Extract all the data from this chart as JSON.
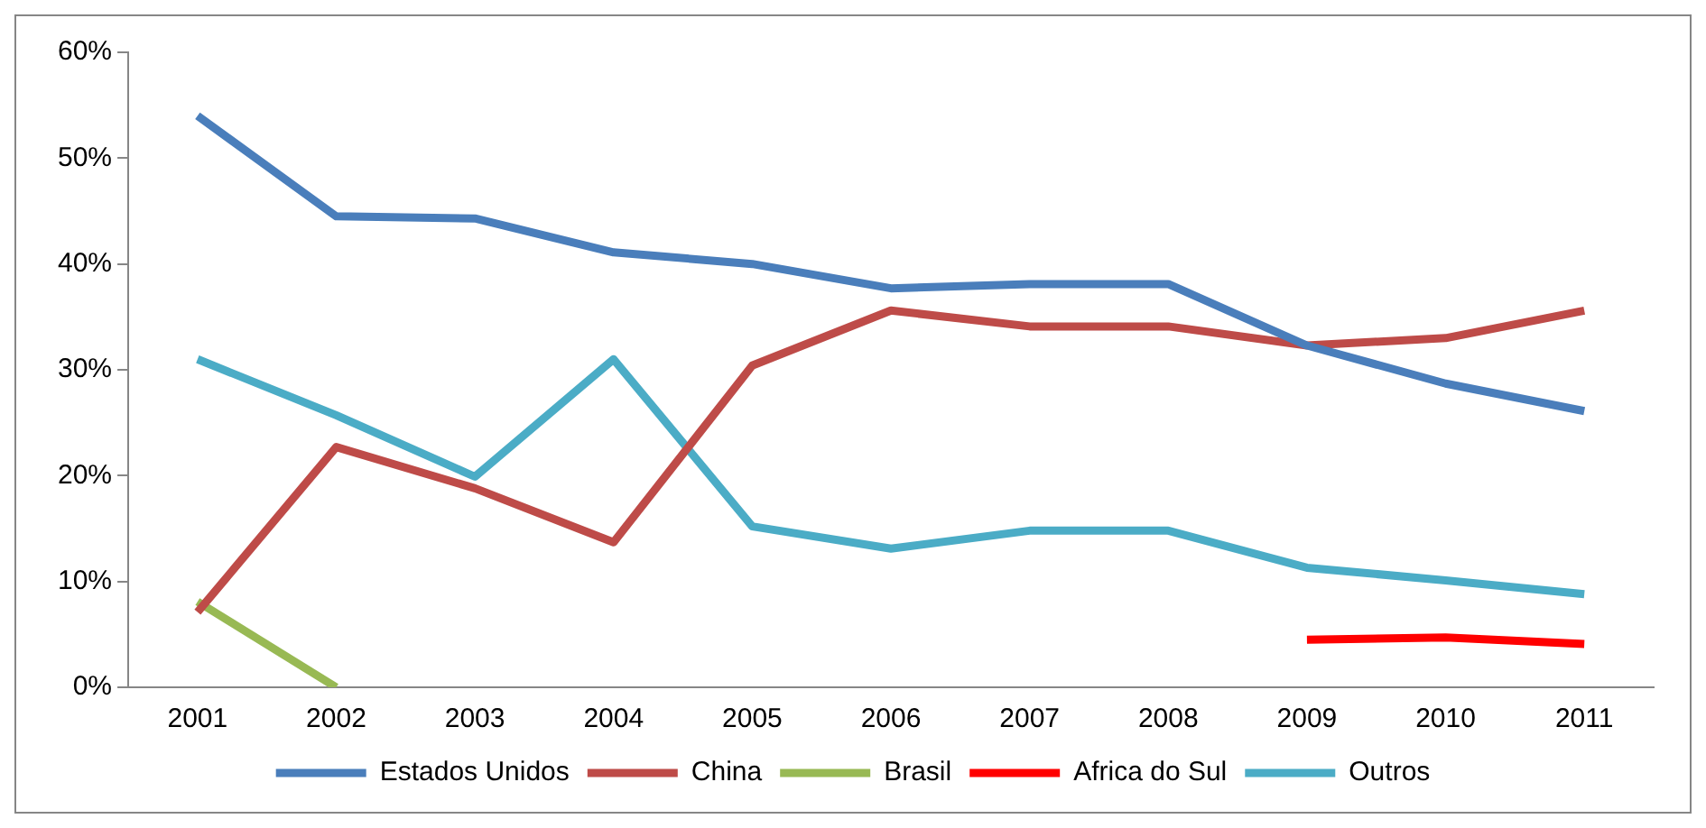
{
  "chart_data": {
    "type": "line",
    "categories": [
      "2001",
      "2002",
      "2003",
      "2004",
      "2005",
      "2006",
      "2007",
      "2008",
      "2009",
      "2010",
      "2011"
    ],
    "series": [
      {
        "name": "Estados Unidos",
        "color": "#4a7ebb",
        "values": [
          54.0,
          44.5,
          44.3,
          41.1,
          40.0,
          37.7,
          38.1,
          38.1,
          32.3,
          28.7,
          26.1
        ]
      },
      {
        "name": "China",
        "color": "#be4b48",
        "values": [
          7.1,
          22.7,
          18.8,
          13.7,
          30.4,
          35.6,
          34.1,
          34.1,
          32.3,
          33.0,
          35.6
        ]
      },
      {
        "name": "Brasil",
        "color": "#98b954",
        "values": [
          8.1,
          0,
          null,
          null,
          null,
          null,
          null,
          null,
          null,
          null,
          null
        ]
      },
      {
        "name": "Africa do Sul",
        "color": "#ff0000",
        "values": [
          null,
          null,
          null,
          null,
          null,
          null,
          null,
          null,
          4.5,
          4.7,
          4.1
        ]
      },
      {
        "name": "Outros",
        "color": "#4bacc6",
        "values": [
          31.0,
          25.7,
          19.9,
          31.0,
          15.2,
          13.1,
          14.8,
          14.8,
          11.3,
          10.1,
          8.8
        ]
      }
    ],
    "ylim": [
      0,
      60
    ],
    "yticks": [
      {
        "value": 0,
        "label": "0%"
      },
      {
        "value": 10,
        "label": "10%"
      },
      {
        "value": 20,
        "label": "20%"
      },
      {
        "value": 30,
        "label": "30%"
      },
      {
        "value": 40,
        "label": "40%"
      },
      {
        "value": 50,
        "label": "50%"
      },
      {
        "value": 60,
        "label": "60%"
      }
    ],
    "grid": false,
    "legend": "bottom",
    "marker": "none",
    "line_style": "solid"
  }
}
